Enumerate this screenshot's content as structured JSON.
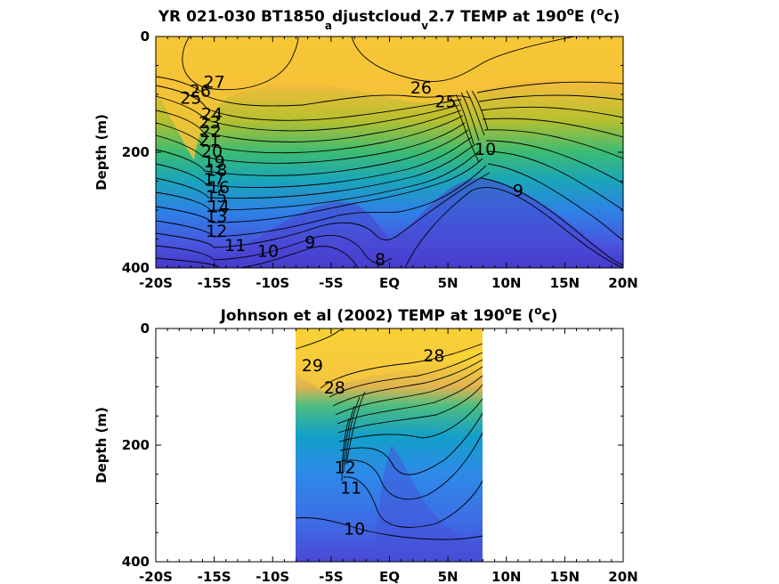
{
  "chart_data": [
    {
      "type": "contour",
      "title_parts": {
        "a": "YR 021-030 BT1850",
        "b": "a",
        "c": "djustcloud",
        "d": "v",
        "e": "2.7 TEMP at 190",
        "f": "o",
        "g": "E (",
        "h": "o",
        "i": "c)"
      },
      "ylabel": "Depth (m)",
      "xlim": [
        -20,
        20
      ],
      "ylim": [
        0,
        400
      ],
      "y_reversed": true,
      "xtick_values": [
        -20,
        -15,
        -10,
        -5,
        0,
        5,
        10,
        15,
        20
      ],
      "xtick_labels": [
        "-20S",
        "-15S",
        "-10S",
        "-5S",
        "EQ",
        "5N",
        "10N",
        "15N",
        "20N"
      ],
      "ytick_values": [
        0,
        200,
        400
      ],
      "ytick_labels": [
        "0",
        "200",
        "400"
      ],
      "data_extent_x": [
        -20,
        20
      ],
      "contour_labels": [
        {
          "text": "27",
          "x": -15.0,
          "y": 80
        },
        {
          "text": "26",
          "x": -16.2,
          "y": 95
        },
        {
          "text": "25",
          "x": -17.0,
          "y": 108
        },
        {
          "text": "24",
          "x": -15.2,
          "y": 135
        },
        {
          "text": "23",
          "x": -15.4,
          "y": 150
        },
        {
          "text": "22",
          "x": -15.3,
          "y": 165
        },
        {
          "text": "21",
          "x": -15.4,
          "y": 180
        },
        {
          "text": "20",
          "x": -15.2,
          "y": 200
        },
        {
          "text": "19",
          "x": -15.0,
          "y": 218
        },
        {
          "text": "18",
          "x": -14.8,
          "y": 232
        },
        {
          "text": "17",
          "x": -15.0,
          "y": 248
        },
        {
          "text": "16",
          "x": -14.6,
          "y": 262
        },
        {
          "text": "15",
          "x": -14.8,
          "y": 278
        },
        {
          "text": "14",
          "x": -14.6,
          "y": 295
        },
        {
          "text": "13",
          "x": -14.8,
          "y": 312
        },
        {
          "text": "12",
          "x": -14.8,
          "y": 338
        },
        {
          "text": "11",
          "x": -13.2,
          "y": 362
        },
        {
          "text": "10",
          "x": -10.4,
          "y": 372
        },
        {
          "text": "9",
          "x": -6.8,
          "y": 357
        },
        {
          "text": "8",
          "x": -0.8,
          "y": 387
        },
        {
          "text": "26",
          "x": 2.7,
          "y": 90
        },
        {
          "text": "25",
          "x": 4.8,
          "y": 114
        },
        {
          "text": "10",
          "x": 8.2,
          "y": 196
        },
        {
          "text": "9",
          "x": 11.0,
          "y": 268
        }
      ]
    },
    {
      "type": "contour",
      "title_parts": {
        "a": "Johnson et al (2002) TEMP at 190",
        "b": "o",
        "c": "E (",
        "d": "o",
        "e": "c)"
      },
      "ylabel": "Depth (m)",
      "xlim": [
        -20,
        20
      ],
      "ylim": [
        0,
        400
      ],
      "y_reversed": true,
      "xtick_values": [
        -20,
        -15,
        -10,
        -5,
        0,
        5,
        10,
        15,
        20
      ],
      "xtick_labels": [
        "-20S",
        "-15S",
        "-10S",
        "-5S",
        "EQ",
        "5N",
        "10N",
        "15N",
        "20N"
      ],
      "ytick_values": [
        0,
        200,
        400
      ],
      "ytick_labels": [
        "0",
        "200",
        "400"
      ],
      "data_extent_x": [
        -8,
        8
      ],
      "contour_labels": [
        {
          "text": "29",
          "x": -6.6,
          "y": 65
        },
        {
          "text": "28",
          "x": 3.8,
          "y": 48
        },
        {
          "text": "28",
          "x": -4.7,
          "y": 103
        },
        {
          "text": "12",
          "x": -3.8,
          "y": 240
        },
        {
          "text": "11",
          "x": -3.3,
          "y": 275
        },
        {
          "text": "10",
          "x": -3.0,
          "y": 345
        }
      ]
    }
  ]
}
